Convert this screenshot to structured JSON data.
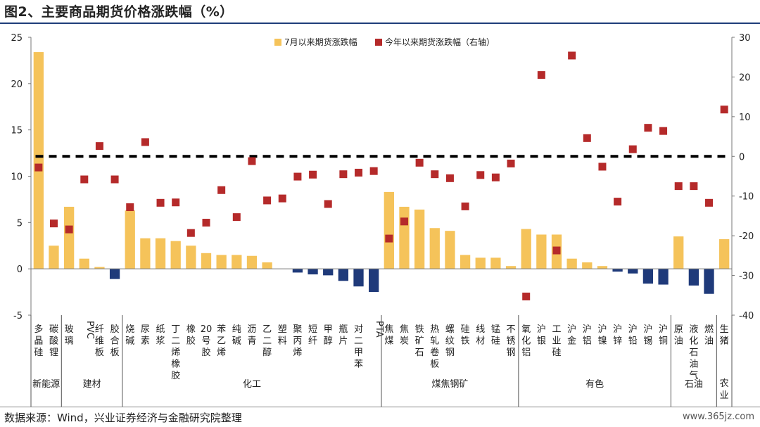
{
  "title": "图2、主要商品期货价格涨跌幅（%）",
  "source": "数据来源：Wind，兴业证券经济与金融研究院整理",
  "watermark": "www.365jz.com",
  "colors": {
    "positive_bar": "#f5c35a",
    "negative_bar": "#1f3a7a",
    "marker": "#b52a2a",
    "zero_line": "#000000"
  },
  "chart_data": {
    "type": "bar",
    "categories": [
      "多晶硅",
      "碳酸锂",
      "玻璃",
      "PVC",
      "纤维板",
      "胶合板",
      "烧碱",
      "尿素",
      "纸浆",
      "丁二烯橡胶",
      "橡胶",
      "20号胶",
      "苯乙烯",
      "纯碱",
      "沥青",
      "乙二醇",
      "塑料",
      "聚丙烯",
      "短纤",
      "甲醇",
      "瓶片",
      "对二甲苯",
      "PTA",
      "焦煤",
      "焦炭",
      "铁矿石",
      "热轧卷板",
      "螺纹钢",
      "硅铁",
      "线材",
      "锰硅",
      "不锈钢",
      "氧化铝",
      "沪银",
      "工业硅",
      "沪金",
      "沪铝",
      "沪镍",
      "沪锌",
      "沪铅",
      "沪锡",
      "沪铜",
      "原油",
      "液化石油气",
      "燃油",
      "生猪"
    ],
    "groups": [
      {
        "name": "新能源",
        "count": 2
      },
      {
        "name": "建材",
        "count": 4
      },
      {
        "name": "化工",
        "count": 17
      },
      {
        "name": "煤焦钢矿",
        "count": 9
      },
      {
        "name": "有色",
        "count": 10
      },
      {
        "name": "石油",
        "count": 3
      },
      {
        "name": "农业",
        "count": 1
      }
    ],
    "series": [
      {
        "name": "7月以来期货涨跌幅",
        "axis": "left",
        "values": [
          23.4,
          2.5,
          6.7,
          1.1,
          0.2,
          -1.1,
          6.3,
          3.3,
          3.3,
          3.0,
          2.5,
          1.7,
          1.5,
          1.5,
          1.4,
          0.7,
          0,
          -0.4,
          -0.6,
          -0.7,
          -1.3,
          -1.9,
          -2.5,
          8.3,
          6.7,
          6.4,
          4.4,
          4.1,
          1.5,
          1.2,
          1.2,
          0.3,
          4.3,
          3.7,
          3.7,
          1.1,
          0.7,
          0.3,
          -0.3,
          -0.5,
          -1.6,
          -1.7,
          3.5,
          -1.8,
          -2.7,
          3.2
        ]
      },
      {
        "name": "今年以来期货涨跌幅（右轴）",
        "axis": "right",
        "values": [
          -2.8,
          -16.9,
          -18.4,
          -5.8,
          2.6,
          -5.8,
          -12.8,
          3.6,
          -11.7,
          -11.6,
          -19.3,
          -16.7,
          -8.5,
          -15.3,
          -1.2,
          -11.1,
          -10.6,
          -5.1,
          -4.6,
          -12.0,
          -4.5,
          -4.1,
          -3.7,
          -20.7,
          -16.4,
          -1.6,
          -4.5,
          -5.5,
          -12.6,
          -4.7,
          -5.3,
          -1.8,
          -35.3,
          20.5,
          -23.7,
          25.4,
          4.6,
          -2.6,
          -11.4,
          1.8,
          7.2,
          6.4,
          -7.5,
          -7.5,
          -11.7,
          11.8
        ]
      }
    ],
    "y_left": {
      "min": -5,
      "max": 25,
      "ticks": [
        -5,
        0,
        5,
        10,
        15,
        20,
        25
      ]
    },
    "y_right": {
      "min": -40,
      "max": 30,
      "ticks": [
        -40,
        -30,
        -20,
        -10,
        0,
        10,
        20,
        30
      ]
    },
    "reference_line": {
      "axis": "right",
      "value": 0,
      "style": "dashed"
    },
    "legend_position": "top-center"
  }
}
